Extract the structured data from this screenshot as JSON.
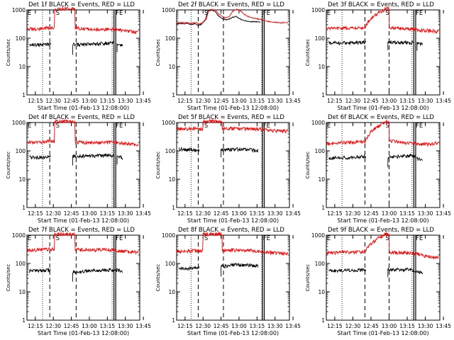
{
  "figure": {
    "x_tick_labels": [
      "12:15",
      "12:30",
      "12:45",
      "13:00",
      "13:15",
      "13:30",
      "13:45"
    ],
    "y_tick_labels": [
      "1",
      "10",
      "100",
      "1000"
    ],
    "ylabel": "Counts/sec",
    "xlabel": "Start Time (01-Feb-13 12:08:00)",
    "colors": {
      "events": "#000000",
      "lld": "#ff0000",
      "axes": "#000000"
    }
  },
  "chart_data": [
    {
      "title": "Det 1f BLACK = Events, RED = LLD",
      "type": "line",
      "yscale": "log",
      "xlim": [
        8,
        102
      ],
      "ylim": [
        1,
        1000
      ],
      "markers": {
        "E": 8.5,
        "S": 32,
        "FE": 82
      },
      "dotted": [
        21,
        79
      ],
      "dashed": [
        27,
        49
      ],
      "solid": [
        80.5,
        82
      ],
      "gaps": [
        [
          28,
          46
        ],
        [
          80.8,
          83
        ]
      ],
      "spikes": [
        [
          31,
          48,
          1000
        ]
      ],
      "series": [
        {
          "name": "Events",
          "color": "#000000",
          "x": [
            10,
            20,
            28,
            35,
            45,
            50,
            60,
            70,
            80,
            85,
            88
          ],
          "values": [
            60,
            58,
            62,
            60,
            60,
            60,
            62,
            65,
            68,
            65,
            55
          ]
        },
        {
          "name": "LLD",
          "color": "#ff0000",
          "x": [
            8,
            15,
            22,
            28,
            35,
            45,
            49,
            55,
            65,
            75,
            81,
            84,
            90,
            96,
            101
          ],
          "values": [
            220,
            210,
            230,
            230,
            240,
            240,
            230,
            220,
            210,
            210,
            200,
            200,
            180,
            170,
            165
          ]
        }
      ]
    },
    {
      "title": "Det 2f BLACK = Events, RED = LLD",
      "type": "line",
      "yscale": "log",
      "xlim": [
        8,
        102
      ],
      "ylim": [
        1,
        1000
      ],
      "markers": {
        "S": 31,
        "FE": 80
      },
      "dotted": [
        20,
        79
      ],
      "dashed": [
        26,
        47
      ],
      "solid": [
        79.5,
        81
      ],
      "gaps": [],
      "spikes": [],
      "series": [
        {
          "name": "Events",
          "color": "#000000",
          "x": [
            8,
            16,
            20,
            24,
            26,
            29,
            32,
            34,
            37,
            40,
            43,
            46,
            49,
            52,
            55,
            58,
            61,
            64,
            67,
            70,
            74,
            78
          ],
          "values": [
            330,
            330,
            310,
            320,
            280,
            320,
            440,
            900,
            1000,
            900,
            600,
            490,
            450,
            480,
            560,
            580,
            480,
            420,
            400,
            390,
            380,
            370
          ]
        },
        {
          "name": "LLD",
          "color": "#ff0000",
          "x": [
            8,
            14,
            20,
            24,
            27,
            30,
            33,
            35,
            37,
            40,
            43,
            46,
            49,
            52,
            55,
            58,
            61,
            64,
            67,
            70,
            74,
            78,
            82,
            86,
            92,
            101
          ],
          "values": [
            350,
            360,
            340,
            350,
            320,
            360,
            500,
            1000,
            1000,
            1000,
            720,
            580,
            520,
            600,
            900,
            1050,
            950,
            700,
            600,
            540,
            490,
            460,
            410,
            380,
            360,
            350
          ]
        }
      ]
    },
    {
      "title": "Det 3f BLACK = Events, RED = LLD",
      "type": "line",
      "yscale": "log",
      "xlim": [
        8,
        102
      ],
      "ylim": [
        1,
        1000
      ],
      "markers": {
        "E": 8.5,
        "S": 57,
        "FE": 82
      },
      "dotted": [
        21,
        79
      ],
      "dashed": [
        40,
        60
      ],
      "solid": [
        80.5,
        82
      ],
      "gaps": [
        [
          41,
          59
        ],
        [
          80.8,
          83
        ]
      ],
      "spikes": [
        [
          56,
          60,
          1000
        ]
      ],
      "series": [
        {
          "name": "Events",
          "color": "#000000",
          "x": [
            10,
            20,
            28,
            40,
            60,
            65,
            70,
            75,
            80,
            85,
            88
          ],
          "values": [
            70,
            68,
            70,
            72,
            75,
            72,
            70,
            72,
            70,
            66,
            58
          ]
        },
        {
          "name": "LLD",
          "color": "#ff0000",
          "x": [
            8,
            15,
            22,
            30,
            40,
            56,
            60,
            66,
            72,
            80,
            84,
            90,
            96,
            101
          ],
          "values": [
            220,
            220,
            230,
            230,
            240,
            1000,
            240,
            230,
            220,
            210,
            200,
            190,
            180,
            170
          ]
        }
      ]
    },
    {
      "title": "Det 4f BLACK = Events, RED = LLD",
      "type": "line",
      "yscale": "log",
      "xlim": [
        8,
        102
      ],
      "ylim": [
        1,
        1000
      ],
      "markers": {
        "E": 8.5,
        "S": 32,
        "FE": 82
      },
      "dotted": [
        21,
        79
      ],
      "dashed": [
        27,
        49
      ],
      "solid": [
        80.5,
        82
      ],
      "gaps": [
        [
          28,
          46
        ],
        [
          80.8,
          83
        ]
      ],
      "spikes": [
        [
          31,
          48,
          1000
        ]
      ],
      "series": [
        {
          "name": "Events",
          "color": "#000000",
          "x": [
            10,
            20,
            28,
            50,
            60,
            70,
            80,
            85,
            88
          ],
          "values": [
            60,
            60,
            62,
            65,
            66,
            68,
            70,
            65,
            55
          ]
        },
        {
          "name": "LLD",
          "color": "#ff0000",
          "x": [
            8,
            15,
            22,
            28,
            49,
            55,
            65,
            75,
            81,
            84,
            90,
            96,
            101
          ],
          "values": [
            200,
            200,
            210,
            220,
            200,
            200,
            195,
            200,
            210,
            200,
            180,
            170,
            160
          ]
        }
      ]
    },
    {
      "title": "Det 5f BLACK = Events, RED = LLD",
      "type": "line",
      "yscale": "log",
      "xlim": [
        8,
        102
      ],
      "ylim": [
        1,
        1000
      ],
      "markers": {
        "S": 31,
        "FE": 80
      },
      "dotted": [
        20,
        79
      ],
      "dashed": [
        26,
        47
      ],
      "solid": [
        79.5,
        81
      ],
      "gaps": [
        [
          27,
          45
        ]
      ],
      "spikes": [
        [
          30,
          46,
          1000
        ]
      ],
      "series": [
        {
          "name": "Events",
          "color": "#000000",
          "x": [
            10,
            15,
            20,
            25,
            48,
            55,
            62,
            70,
            76
          ],
          "values": [
            120,
            110,
            110,
            105,
            110,
            115,
            115,
            110,
            105
          ]
        },
        {
          "name": "LLD",
          "color": "#ff0000",
          "x": [
            8,
            15,
            22,
            26,
            47,
            55,
            65,
            75,
            80,
            86,
            92,
            101
          ],
          "values": [
            600,
            590,
            620,
            600,
            600,
            620,
            600,
            590,
            560,
            520,
            520,
            500
          ]
        }
      ]
    },
    {
      "title": "Det 6f BLACK = Events, RED = LLD",
      "type": "line",
      "yscale": "log",
      "xlim": [
        8,
        102
      ],
      "ylim": [
        1,
        1000
      ],
      "markers": {
        "E": 8.5,
        "S": 57,
        "FE": 82
      },
      "dotted": [
        21,
        79
      ],
      "dashed": [
        40,
        60
      ],
      "solid": [
        80.5,
        82
      ],
      "gaps": [
        [
          41,
          59
        ]
      ],
      "spikes": [
        [
          56,
          60,
          1000
        ]
      ],
      "series": [
        {
          "name": "Events",
          "color": "#000000",
          "x": [
            10,
            20,
            28,
            40,
            60,
            65,
            70,
            78,
            82,
            85,
            88
          ],
          "values": [
            55,
            58,
            60,
            62,
            60,
            62,
            65,
            68,
            60,
            50,
            45
          ]
        },
        {
          "name": "LLD",
          "color": "#ff0000",
          "x": [
            8,
            15,
            22,
            30,
            40,
            56,
            60,
            66,
            72,
            80,
            84,
            90,
            96,
            101
          ],
          "values": [
            180,
            190,
            195,
            200,
            210,
            1000,
            220,
            210,
            200,
            180,
            170,
            175,
            170,
            200
          ]
        }
      ]
    },
    {
      "title": "Det 7f BLACK = Events, RED = LLD",
      "type": "line",
      "yscale": "log",
      "xlim": [
        8,
        102
      ],
      "ylim": [
        1,
        1000
      ],
      "markers": {
        "E": 8.5,
        "S": 32,
        "FE": 82
      },
      "dotted": [
        21,
        79
      ],
      "dashed": [
        27,
        49
      ],
      "solid": [
        80.5,
        82
      ],
      "gaps": [
        [
          28,
          46
        ]
      ],
      "spikes": [
        [
          31,
          48,
          1000
        ]
      ],
      "series": [
        {
          "name": "Events",
          "color": "#000000",
          "x": [
            10,
            20,
            26,
            50,
            60,
            70,
            80,
            85,
            88
          ],
          "values": [
            55,
            55,
            60,
            50,
            55,
            58,
            60,
            58,
            50
          ]
        },
        {
          "name": "LLD",
          "color": "#ff0000",
          "x": [
            8,
            15,
            22,
            27,
            49,
            55,
            65,
            75,
            81,
            84,
            90,
            96,
            101
          ],
          "values": [
            300,
            300,
            310,
            320,
            310,
            300,
            300,
            310,
            300,
            280,
            270,
            260,
            250
          ]
        }
      ]
    },
    {
      "title": "Det 8f BLACK = Events, RED = LLD",
      "type": "line",
      "yscale": "log",
      "xlim": [
        8,
        102
      ],
      "ylim": [
        1,
        1000
      ],
      "markers": {
        "S": 31,
        "FE": 80
      },
      "dotted": [
        20,
        79
      ],
      "dashed": [
        26,
        47
      ],
      "solid": [
        79.5,
        81
      ],
      "gaps": [
        [
          27,
          45
        ]
      ],
      "spikes": [
        [
          30,
          46,
          1000
        ]
      ],
      "series": [
        {
          "name": "Events",
          "color": "#000000",
          "x": [
            10,
            15,
            20,
            25,
            48,
            55,
            62,
            70,
            76
          ],
          "values": [
            70,
            65,
            68,
            70,
            80,
            90,
            90,
            88,
            85
          ]
        },
        {
          "name": "LLD",
          "color": "#ff0000",
          "x": [
            8,
            15,
            22,
            26,
            47,
            55,
            65,
            75,
            80,
            86,
            92,
            101
          ],
          "values": [
            260,
            270,
            280,
            280,
            290,
            300,
            290,
            280,
            260,
            240,
            230,
            220
          ]
        }
      ]
    },
    {
      "title": "Det 9f BLACK = Events, RED = LLD",
      "type": "line",
      "yscale": "log",
      "xlim": [
        8,
        102
      ],
      "ylim": [
        1,
        1000
      ],
      "markers": {
        "E": 8.5,
        "S": 57,
        "FE": 82
      },
      "dotted": [
        21,
        79
      ],
      "dashed": [
        40,
        60
      ],
      "solid": [
        80.5,
        82
      ],
      "gaps": [
        [
          41,
          59
        ]
      ],
      "spikes": [
        [
          56,
          60,
          1000
        ]
      ],
      "series": [
        {
          "name": "Events",
          "color": "#000000",
          "x": [
            10,
            20,
            28,
            40,
            60,
            65,
            70,
            78,
            82,
            85,
            88
          ],
          "values": [
            55,
            55,
            58,
            60,
            60,
            62,
            60,
            62,
            55,
            50,
            45
          ]
        },
        {
          "name": "LLD",
          "color": "#ff0000",
          "x": [
            8,
            15,
            22,
            30,
            40,
            56,
            60,
            66,
            72,
            80,
            84,
            90,
            96,
            101
          ],
          "values": [
            240,
            240,
            250,
            250,
            260,
            1000,
            250,
            240,
            240,
            230,
            220,
            180,
            170,
            160
          ]
        }
      ]
    }
  ]
}
